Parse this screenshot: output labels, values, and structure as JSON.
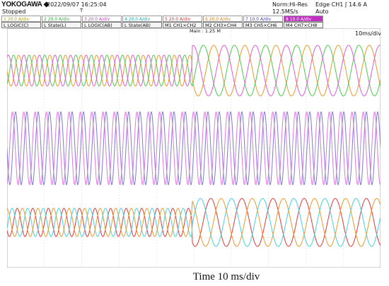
{
  "header": {
    "brand": "YOKOGAWA ◆",
    "status": "Stopped",
    "datetime": "2022/09/07  16:25:04",
    "trigger_mark": "T",
    "acq_mode": "Norm:Hi-Res",
    "sample_rate": "12.5MS/s",
    "trigger_source": "Edge CH1 ʃ 14.6 A",
    "trigger_mode": "Auto"
  },
  "channels": [
    {
      "num": "1",
      "label": "20.0 A/div",
      "color": "#e8c81a"
    },
    {
      "num": "2",
      "label": "20.0 A/div",
      "color": "#55cc55"
    },
    {
      "num": "3",
      "label": "20.0 A/div",
      "color": "#e060e0"
    },
    {
      "num": "4",
      "label": "20.0 A/div",
      "color": "#40d0d0"
    },
    {
      "num": "5",
      "label": "20.0 A/div",
      "color": "#e04040"
    },
    {
      "num": "6",
      "label": "20.0 A/div",
      "color": "#e09030"
    },
    {
      "num": "7",
      "label": "10.0 A/div",
      "color": "#5050e0"
    },
    {
      "num": "8",
      "label": "10.0 A/div",
      "color": "#c030c0"
    }
  ],
  "math_row": [
    {
      "tag": "L",
      "label": "LOGIC(C)"
    },
    {
      "tag": "L",
      "label": "State(L)"
    },
    {
      "tag": "L",
      "label": "LOGIC(AB)"
    },
    {
      "tag": "L",
      "label": "State(AB)"
    },
    {
      "tag": "M1",
      "label": "CH1×CH2"
    },
    {
      "tag": "M2",
      "label": "CH3×CH4"
    },
    {
      "tag": "M3",
      "label": "CH5×CH6"
    },
    {
      "tag": "M4",
      "label": "CH7×CH8"
    }
  ],
  "plot": {
    "timebase": "10ms/div",
    "main_length": "Main : 1.25 M",
    "trigger_level_mark": "L"
  },
  "caption": "Time 10 ms/div",
  "colors": {
    "orange": "#e89a2a",
    "green": "#4cc94c",
    "magenta": "#e05ad8",
    "purple": "#7a78d8",
    "pink": "#e07ad8",
    "red": "#e03838",
    "cyan": "#45d0e0",
    "grid": "#c8c8c8"
  }
}
